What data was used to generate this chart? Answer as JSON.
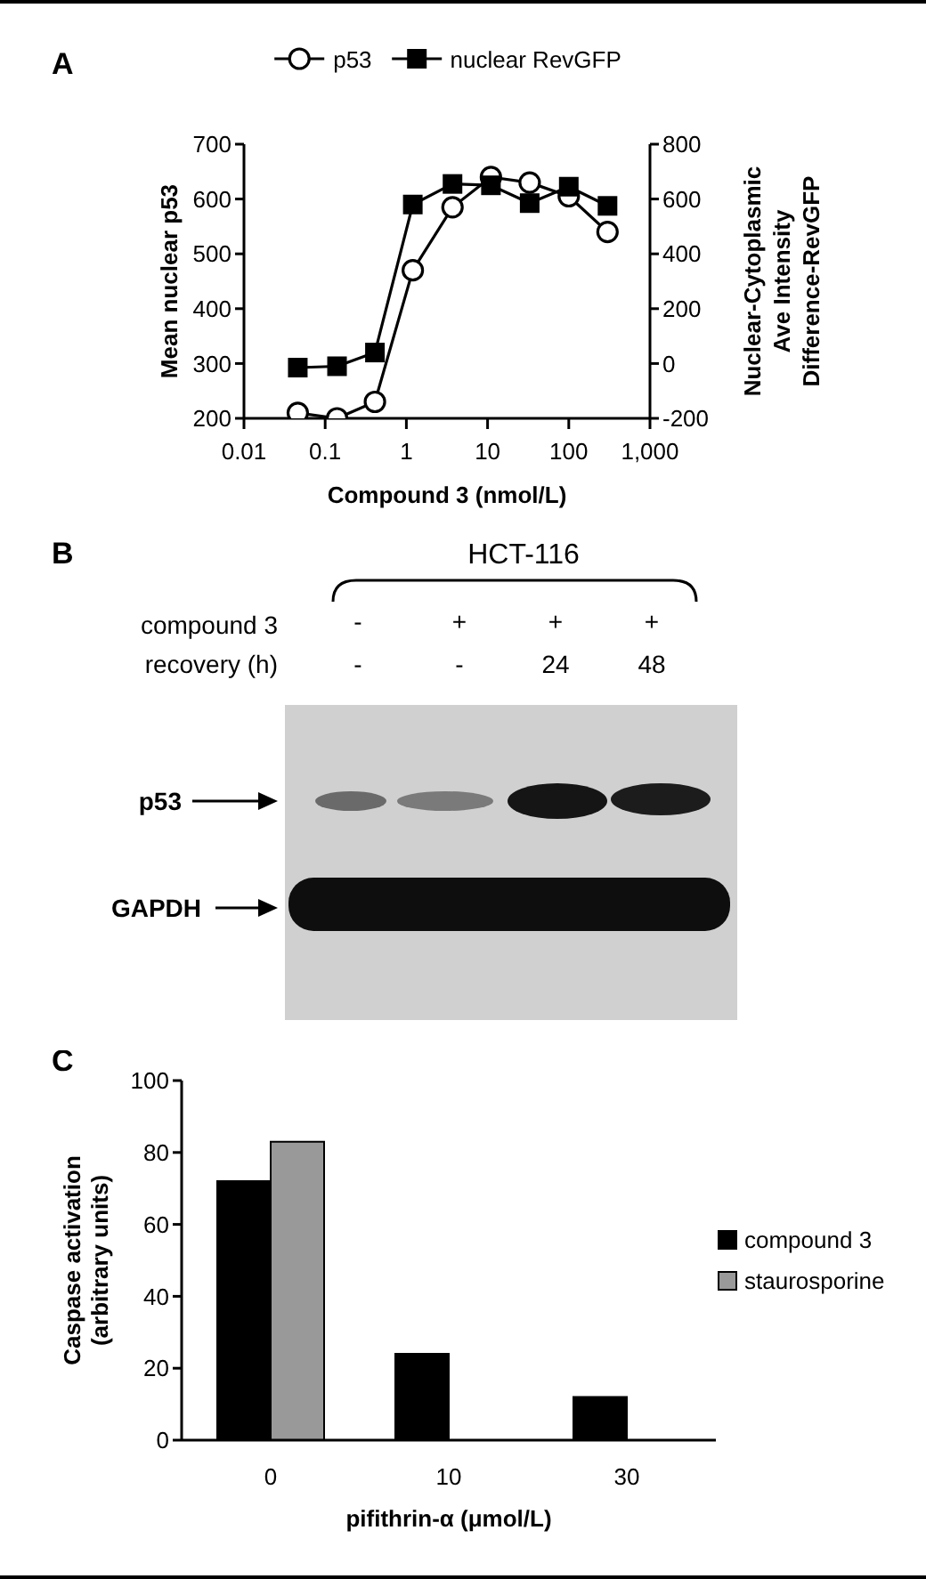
{
  "chart_data": [
    {
      "type": "line",
      "title": "A",
      "xlabel": "Compound 3 (nmol/L)",
      "ylabel": "Mean nuclear p53",
      "y2label": "Nuclear-Cytoplasmic Ave Intensity Difference-RevGFP",
      "x": [
        0.046,
        0.14,
        0.41,
        1.2,
        3.7,
        11,
        33,
        100,
        300
      ],
      "series": [
        {
          "name": "p53",
          "color": "#000000",
          "marker": "circle",
          "values": [
            210,
            200,
            230,
            470,
            585,
            640,
            630,
            605,
            540
          ]
        },
        {
          "name": "nuclear RevGFP",
          "color": "#000000",
          "marker": "square",
          "axis": "y2",
          "values": [
            -15,
            -10,
            40,
            580,
            655,
            650,
            585,
            645,
            575
          ]
        }
      ],
      "log": "x",
      "xlim": [
        0.01,
        1000
      ],
      "xticks": [
        0.01,
        0.1,
        1,
        10,
        100,
        {
          "value": 1000,
          "label": "1,000"
        }
      ],
      "ylim": [
        200,
        700
      ],
      "yticks": [
        200,
        300,
        400,
        500,
        600,
        700
      ],
      "y2lim": [
        -200,
        800
      ],
      "y2ticks": [
        -200,
        0,
        200,
        400,
        600,
        800
      ],
      "legend": "top",
      "line_style": "solid"
    },
    {
      "type": "other",
      "title": "B",
      "subtitle": "HCT-116",
      "annotations": [
        "compound 3",
        "recovery (h)",
        "-",
        "+",
        "+",
        "+",
        "-",
        "-",
        "24",
        "48",
        "p53",
        "GAPDH"
      ]
    },
    {
      "type": "bar",
      "title": "C",
      "categories": [
        "0",
        "10",
        "30"
      ],
      "series": [
        {
          "name": "compound 3",
          "color": "#000000",
          "values": [
            72,
            24,
            12
          ]
        },
        {
          "name": "staurosporine",
          "color": "#999999",
          "values": [
            83,
            null,
            null
          ]
        }
      ],
      "xlabel": "pifithrin-α (μmol/L)",
      "ylabel": "Caspase activation (arbitrary units)",
      "ylim": [
        0,
        100
      ],
      "yticks": [
        0,
        20,
        40,
        60,
        80,
        100
      ],
      "legend": "right"
    }
  ]
}
